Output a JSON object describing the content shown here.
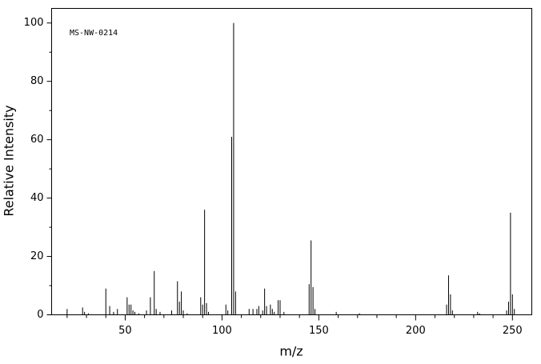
{
  "chart_data": {
    "type": "bar",
    "annotation": "MS-NW-0214",
    "xlabel": "m/z",
    "ylabel": "Relative Intensity",
    "x": [
      20,
      28,
      29,
      31,
      40,
      42,
      44,
      46,
      51,
      52,
      53,
      54,
      55,
      57,
      61,
      63,
      65,
      66,
      68,
      74,
      77,
      78,
      79,
      80,
      82,
      89,
      90,
      91,
      92,
      93,
      102,
      103,
      105,
      106,
      107,
      114,
      116,
      118,
      119,
      121,
      122,
      123,
      125,
      126,
      127,
      129,
      130,
      132,
      145,
      146,
      147,
      148,
      159,
      171,
      216,
      217,
      218,
      219,
      232,
      233,
      247,
      248,
      249,
      250,
      251
    ],
    "values": [
      2,
      2.5,
      1,
      0.5,
      9,
      3,
      1,
      2,
      6,
      3.5,
      3.5,
      1.5,
      1,
      0.5,
      1.5,
      6,
      15,
      2,
      1,
      1.5,
      11.5,
      4.5,
      8,
      1.5,
      0.5,
      6,
      3.5,
      36,
      4,
      1,
      3.5,
      1.5,
      61,
      100,
      8,
      2,
      2,
      2,
      3,
      1.5,
      9,
      3,
      3.5,
      2,
      1,
      5,
      5,
      1,
      10.5,
      25.5,
      9.5,
      2,
      1,
      0.5,
      3.5,
      13.5,
      7,
      1.5,
      1,
      0.5,
      1.5,
      4.5,
      35,
      7,
      2
    ],
    "color": "#000000",
    "xlim": [
      12,
      260
    ],
    "ylim": [
      0,
      105
    ],
    "xticks": [
      50,
      100,
      150,
      200,
      250
    ],
    "xminorticks": [
      20,
      30,
      40,
      60,
      70,
      80,
      90,
      110,
      120,
      130,
      140,
      160,
      170,
      180,
      190,
      210,
      220,
      230,
      240
    ],
    "yticks": [
      0,
      20,
      40,
      60,
      80,
      100
    ],
    "yminorticks": [
      10,
      30,
      50,
      70,
      90
    ],
    "grid": false
  }
}
